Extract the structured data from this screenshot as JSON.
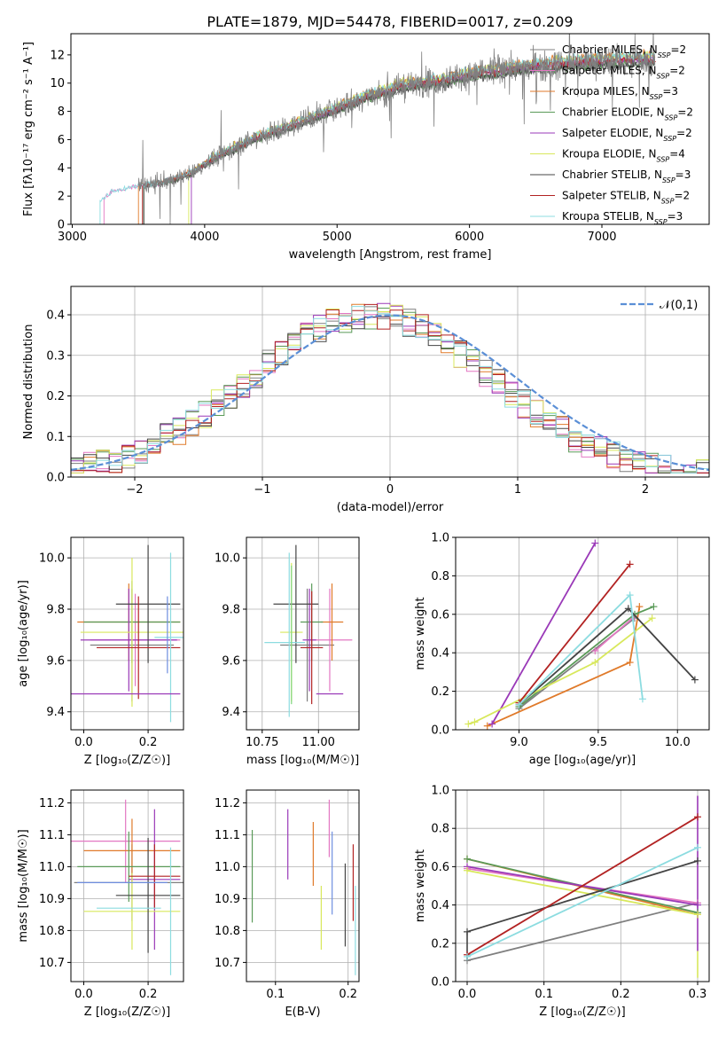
{
  "colors": {
    "Chabrier MILES": "#7f7f7f",
    "Salpeter MILES": "#e377c2",
    "Kroupa MILES": "#e07a2a",
    "Chabrier ELODIE": "#5a9a58",
    "Salpeter ELODIE": "#9a39b8",
    "Kroupa ELODIE": "#d8e85c",
    "Chabrier STELIB": "#444444",
    "Salpeter STELIB": "#b22222",
    "Kroupa STELIB": "#8cdce0",
    "normal": "#5b8fd6",
    "extra1": "#7fd67f",
    "extra2": "#6f8ee0"
  },
  "chart_data": [
    {
      "type": "line",
      "id": "spectrum",
      "title": "PLATE=1879, MJD=54478, FIBERID=0017, z=0.209",
      "xlabel": "wavelength [Angstrom, rest frame]",
      "ylabel": "Flux [fλ10⁻¹⁷ erg cm⁻² s⁻¹ A⁻¹]",
      "xlim": [
        2990,
        7810
      ],
      "ylim": [
        0,
        13.5
      ],
      "xticks": [
        "3000",
        "4000",
        "5000",
        "6000",
        "7000"
      ],
      "yticks": [
        "0",
        "2",
        "4",
        "6",
        "8",
        "10",
        "12"
      ],
      "legend_position": "top-right",
      "series": [
        {
          "label": "Chabrier MILES, N",
          "sub": "SSP",
          "suffix": "=2"
        },
        {
          "label": "Salpeter MILES, N",
          "sub": "SSP",
          "suffix": "=2"
        },
        {
          "label": "Kroupa MILES, N",
          "sub": "SSP",
          "suffix": "=3"
        },
        {
          "label": "Chabrier ELODIE, N",
          "sub": "SSP",
          "suffix": "=2"
        },
        {
          "label": "Salpeter ELODIE, N",
          "sub": "SSP",
          "suffix": "=2"
        },
        {
          "label": "Kroupa ELODIE, N",
          "sub": "SSP",
          "suffix": "=4"
        },
        {
          "label": "Chabrier STELIB, N",
          "sub": "SSP",
          "suffix": "=3"
        },
        {
          "label": "Salpeter STELIB, N",
          "sub": "SSP",
          "suffix": "=2"
        },
        {
          "label": "Kroupa STELIB, N",
          "sub": "SSP",
          "suffix": "=3"
        }
      ],
      "continuum": {
        "x": [
          3200,
          3300,
          3500,
          3700,
          3900,
          4000,
          4200,
          4400,
          4600,
          4800,
          5000,
          5200,
          5500,
          5800,
          6000,
          6300,
          6600,
          6900,
          7200,
          7400
        ],
        "y": [
          1.5,
          2.3,
          2.7,
          3.0,
          3.6,
          4.3,
          5.3,
          6.2,
          6.8,
          7.5,
          8.2,
          9.0,
          9.8,
          10.2,
          10.6,
          11.0,
          11.3,
          11.5,
          11.6,
          11.7
        ]
      }
    },
    {
      "type": "line",
      "id": "residuals",
      "xlabel": "(data-model)/error",
      "ylabel": "Normed distribution",
      "xlim": [
        -2.5,
        2.5
      ],
      "ylim": [
        0,
        0.47
      ],
      "xticks": [
        "−2",
        "−1",
        "0",
        "1",
        "2"
      ],
      "yticks": [
        "0.0",
        "0.1",
        "0.2",
        "0.3",
        "0.4"
      ],
      "legend": "𝒩(0,1)",
      "legend_position": "top-right"
    },
    {
      "type": "scatter",
      "id": "age_vs_Z",
      "xlabel": "Z [log₁₀(Z/Z☉)]",
      "ylabel": "age  [log₁₀(age/yr)]",
      "xlim": [
        -0.04,
        0.31
      ],
      "ylim": [
        9.33,
        10.08
      ],
      "xticks": [
        "0.0",
        "0.2"
      ],
      "yticks": [
        "9.4",
        "9.6",
        "9.8",
        "10.0"
      ],
      "points": [
        {
          "x": 0.15,
          "y": 9.66,
          "xe": 0.13,
          "ye": 0.22,
          "c": "#7f7f7f"
        },
        {
          "x": 0.16,
          "y": 9.68,
          "xe": 0.14,
          "ye": 0.18,
          "c": "#e377c2"
        },
        {
          "x": 0.14,
          "y": 9.75,
          "xe": 0.16,
          "ye": 0.15,
          "c": "#e07a2a"
        },
        {
          "x": 0.15,
          "y": 9.75,
          "xe": 0.15,
          "ye": 0.16,
          "c": "#5a9a58"
        },
        {
          "x": 0.14,
          "y": 9.68,
          "xe": 0.15,
          "ye": 0.2,
          "c": "#9a39b8"
        },
        {
          "x": 0.15,
          "y": 9.71,
          "xe": 0.16,
          "ye": 0.29,
          "c": "#d8e85c"
        },
        {
          "x": 0.2,
          "y": 9.82,
          "xe": 0.1,
          "ye": 0.23,
          "c": "#444444"
        },
        {
          "x": 0.17,
          "y": 9.65,
          "xe": 0.13,
          "ye": 0.2,
          "c": "#b22222"
        },
        {
          "x": 0.27,
          "y": 9.69,
          "xe": 0.05,
          "ye": 0.33,
          "c": "#8cdce0"
        },
        {
          "x": 0.1,
          "y": 9.47,
          "xe": 0.2,
          "ye": 0.0,
          "c": "#9a39b8"
        },
        {
          "x": 0.26,
          "y": 9.7,
          "xe": 0.0,
          "ye": 0.15,
          "c": "#6f8ee0"
        }
      ]
    },
    {
      "type": "scatter",
      "id": "age_vs_mass",
      "xlabel": "mass [log₁₀(M/M☉)]",
      "xlim": [
        10.68,
        11.18
      ],
      "ylim": [
        9.33,
        10.08
      ],
      "xticks": [
        "10.75",
        "11.00"
      ],
      "yticks": [
        "9.4",
        "9.6",
        "9.8",
        "10.0"
      ],
      "points": [
        {
          "x": 10.95,
          "y": 9.66,
          "xe": 0.12,
          "ye": 0.22,
          "c": "#7f7f7f"
        },
        {
          "x": 11.05,
          "y": 9.68,
          "xe": 0.1,
          "ye": 0.2,
          "c": "#e377c2"
        },
        {
          "x": 11.06,
          "y": 9.75,
          "xe": 0.05,
          "ye": 0.15,
          "c": "#e07a2a"
        },
        {
          "x": 10.97,
          "y": 9.75,
          "xe": 0.05,
          "ye": 0.15,
          "c": "#5a9a58"
        },
        {
          "x": 10.96,
          "y": 9.68,
          "xe": 0.03,
          "ye": 0.2,
          "c": "#9a39b8"
        },
        {
          "x": 10.88,
          "y": 9.71,
          "xe": 0.05,
          "ye": 0.27,
          "c": "#d8e85c"
        },
        {
          "x": 10.9,
          "y": 9.82,
          "xe": 0.1,
          "ye": 0.23,
          "c": "#444444"
        },
        {
          "x": 10.97,
          "y": 9.65,
          "xe": 0.05,
          "ye": 0.22,
          "c": "#b22222"
        },
        {
          "x": 10.87,
          "y": 9.7,
          "xe": 0.0,
          "ye": 0.32,
          "c": "#8cdce0"
        },
        {
          "x": 10.85,
          "y": 9.67,
          "xe": 0.09,
          "ye": 0.0,
          "c": "#8cdce0"
        },
        {
          "x": 11.05,
          "y": 9.47,
          "xe": 0.06,
          "ye": 0.0,
          "c": "#9a39b8"
        },
        {
          "x": 10.88,
          "y": 9.7,
          "xe": 0.0,
          "ye": 0.27,
          "c": "#7fd67f"
        }
      ]
    },
    {
      "type": "line",
      "id": "weight_vs_age",
      "xlabel": "age  [log₁₀(age/yr)]",
      "ylabel": "mass weight",
      "xlim": [
        8.6,
        10.2
      ],
      "ylim": [
        0,
        1
      ],
      "xticks": [
        "9.0",
        "9.5",
        "10.0"
      ],
      "yticks": [
        "0.0",
        "0.2",
        "0.4",
        "0.6",
        "0.8",
        "1.0"
      ],
      "series": [
        {
          "c": "#7f7f7f",
          "x": [
            9.0,
            9.73
          ],
          "y": [
            0.11,
            0.58
          ]
        },
        {
          "c": "#e377c2",
          "x": [
            9.48,
            9.73
          ],
          "y": [
            0.41,
            0.59
          ]
        },
        {
          "c": "#e07a2a",
          "x": [
            8.8,
            9.7,
            9.76
          ],
          "y": [
            0.02,
            0.35,
            0.64
          ]
        },
        {
          "c": "#5a9a58",
          "x": [
            9.0,
            9.73,
            9.85
          ],
          "y": [
            0.12,
            0.6,
            0.64
          ]
        },
        {
          "c": "#9a39b8",
          "x": [
            8.83,
            9.48
          ],
          "y": [
            0.03,
            0.97
          ]
        },
        {
          "c": "#d8e85c",
          "x": [
            8.68,
            8.72,
            9.48,
            9.84
          ],
          "y": [
            0.03,
            0.04,
            0.35,
            0.58
          ]
        },
        {
          "c": "#444444",
          "x": [
            9.0,
            9.69,
            10.11
          ],
          "y": [
            0.13,
            0.63,
            0.26
          ]
        },
        {
          "c": "#b22222",
          "x": [
            9.0,
            9.7
          ],
          "y": [
            0.14,
            0.86
          ]
        },
        {
          "c": "#8cdce0",
          "x": [
            9.0,
            9.7,
            9.78
          ],
          "y": [
            0.13,
            0.7,
            0.16
          ]
        }
      ]
    },
    {
      "type": "scatter",
      "id": "mass_vs_Z",
      "xlabel": "Z [log₁₀(Z/Z☉)]",
      "ylabel": "mass [log₁₀(M/M☉)]",
      "xlim": [
        -0.04,
        0.31
      ],
      "ylim": [
        10.64,
        11.24
      ],
      "xticks": [
        "0.0",
        "0.2"
      ],
      "yticks": [
        "10.7",
        "10.8",
        "10.9",
        "11.0",
        "11.1",
        "11.2"
      ],
      "points": [
        {
          "x": 0.15,
          "y": 10.95,
          "xe": 0.18,
          "ye": 0.12,
          "c": "#7f7f7f"
        },
        {
          "x": 0.13,
          "y": 11.08,
          "xe": 0.17,
          "ye": 0.13,
          "c": "#e377c2"
        },
        {
          "x": 0.15,
          "y": 11.05,
          "xe": 0.15,
          "ye": 0.1,
          "c": "#e07a2a"
        },
        {
          "x": 0.14,
          "y": 11.0,
          "xe": 0.16,
          "ye": 0.11,
          "c": "#5a9a58"
        },
        {
          "x": 0.22,
          "y": 10.96,
          "xe": 0.08,
          "ye": 0.22,
          "c": "#9a39b8"
        },
        {
          "x": 0.15,
          "y": 10.86,
          "xe": 0.15,
          "ye": 0.12,
          "c": "#d8e85c"
        },
        {
          "x": 0.2,
          "y": 10.91,
          "xe": 0.1,
          "ye": 0.18,
          "c": "#444444"
        },
        {
          "x": 0.22,
          "y": 10.97,
          "xe": 0.08,
          "ye": 0.1,
          "c": "#b22222"
        },
        {
          "x": 0.14,
          "y": 10.87,
          "xe": 0.1,
          "ye": 0.0,
          "c": "#8cdce0"
        },
        {
          "x": 0.27,
          "y": 10.86,
          "xe": 0.0,
          "ye": 0.2,
          "c": "#8cdce0"
        },
        {
          "x": 0.12,
          "y": 10.95,
          "xe": 0.14,
          "ye": 0.0,
          "c": "#6f8ee0"
        }
      ]
    },
    {
      "type": "scatter",
      "id": "mass_vs_ebv",
      "xlabel": "E(B-V)",
      "xlim": [
        0.06,
        0.215
      ],
      "ylim": [
        10.64,
        11.24
      ],
      "xticks": [
        "0.1",
        "0.2"
      ],
      "yticks": [
        "10.7",
        "10.8",
        "10.9",
        "11.0",
        "11.1",
        "11.2"
      ],
      "points": [
        {
          "x": 0.068,
          "y": 10.97,
          "xe": 0,
          "ye": 0.145,
          "c": "#5a9a58"
        },
        {
          "x": 0.117,
          "y": 11.07,
          "xe": 0,
          "ye": 0.11,
          "c": "#9a39b8"
        },
        {
          "x": 0.152,
          "y": 11.04,
          "xe": 0,
          "ye": 0.1,
          "c": "#e07a2a"
        },
        {
          "x": 0.163,
          "y": 10.84,
          "xe": 0,
          "ye": 0.1,
          "c": "#d8e85c"
        },
        {
          "x": 0.174,
          "y": 11.12,
          "xe": 0,
          "ye": 0.09,
          "c": "#e377c2"
        },
        {
          "x": 0.178,
          "y": 10.98,
          "xe": 0,
          "ye": 0.13,
          "c": "#6f8ee0"
        },
        {
          "x": 0.196,
          "y": 10.88,
          "xe": 0,
          "ye": 0.13,
          "c": "#444444"
        },
        {
          "x": 0.207,
          "y": 10.95,
          "xe": 0,
          "ye": 0.12,
          "c": "#b22222"
        },
        {
          "x": 0.21,
          "y": 10.8,
          "xe": 0,
          "ye": 0.14,
          "c": "#8cdce0"
        }
      ]
    },
    {
      "type": "line",
      "id": "weight_vs_Z",
      "xlabel": "Z [log₁₀(Z/Z☉)]",
      "ylabel": "mass weight",
      "xlim": [
        -0.015,
        0.315
      ],
      "ylim": [
        0,
        1
      ],
      "xticks": [
        "0.0",
        "0.1",
        "0.2",
        "0.3"
      ],
      "yticks": [
        "0.0",
        "0.2",
        "0.4",
        "0.6",
        "0.8",
        "1.0"
      ],
      "series": [
        {
          "c": "#7f7f7f",
          "x": [
            0.0,
            0.3
          ],
          "y": [
            0.11,
            0.41
          ]
        },
        {
          "c": "#e377c2",
          "x": [
            0.0,
            0.3
          ],
          "y": [
            0.59,
            0.41
          ]
        },
        {
          "c": "#e07a2a",
          "x": [
            0.0,
            0.3
          ],
          "y": [
            0.64,
            0.35
          ]
        },
        {
          "c": "#5a9a58",
          "x": [
            0.0,
            0.3
          ],
          "y": [
            0.64,
            0.36
          ]
        },
        {
          "c": "#9a39b8",
          "x": [
            0.0,
            0.3
          ],
          "y": [
            0.6,
            0.4
          ]
        },
        {
          "c": "#d8e85c",
          "x": [
            0.0,
            0.3
          ],
          "y": [
            0.58,
            0.35
          ]
        },
        {
          "c": "#444444",
          "x": [
            0.0,
            0.3
          ],
          "y": [
            0.26,
            0.63
          ]
        },
        {
          "c": "#b22222",
          "x": [
            0.0,
            0.3
          ],
          "y": [
            0.14,
            0.86
          ]
        },
        {
          "c": "#8cdce0",
          "x": [
            0.0,
            0.3
          ],
          "y": [
            0.13,
            0.7
          ]
        }
      ],
      "vlines": [
        {
          "x": 0.3,
          "y0": 0.16,
          "y1": 0.97,
          "c": "#9a39b8"
        },
        {
          "x": 0.3,
          "y0": 0.02,
          "y1": 0.16,
          "c": "#d8e85c"
        },
        {
          "x": 0.0,
          "y0": 0.11,
          "y1": 0.26,
          "c": "#444444"
        }
      ]
    }
  ]
}
